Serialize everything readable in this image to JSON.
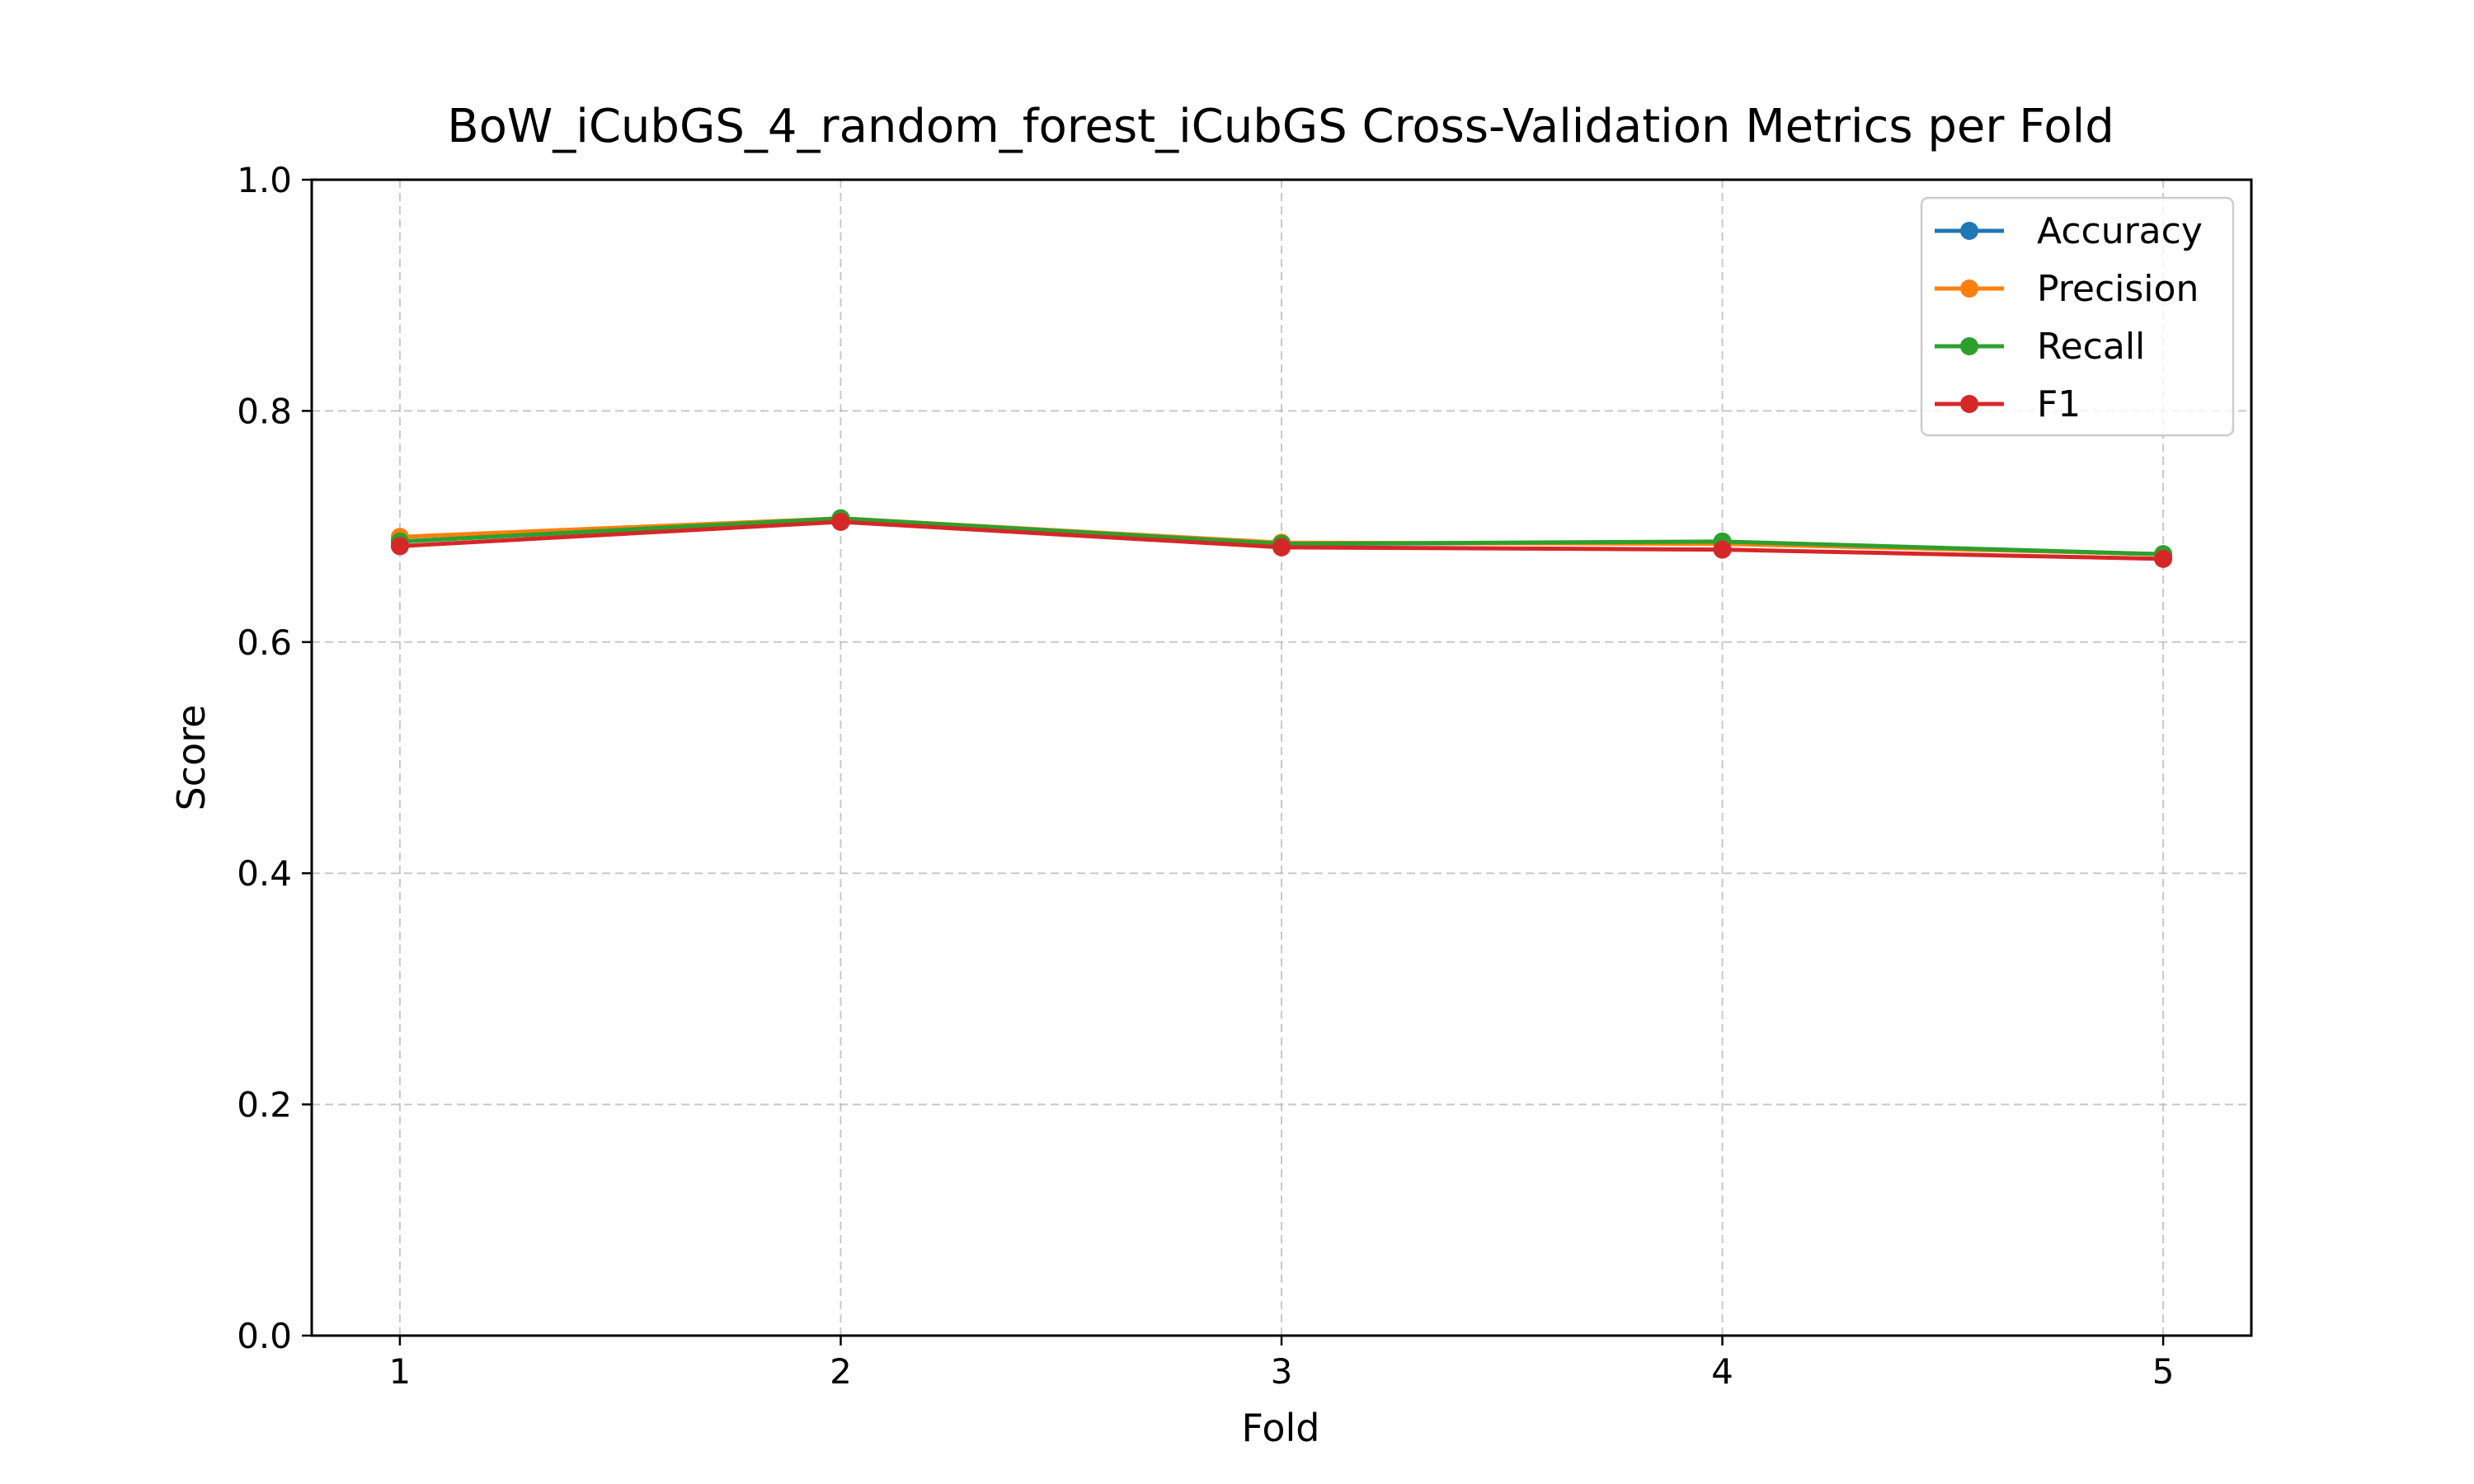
{
  "chart_data": {
    "type": "line",
    "title": "BoW_iCubGS_4_random_forest_iCubGS Cross-Validation Metrics per Fold",
    "xlabel": "Fold",
    "ylabel": "Score",
    "x": [
      1,
      2,
      3,
      4,
      5
    ],
    "xlim": [
      0.8,
      5.2
    ],
    "ylim": [
      0.0,
      1.0
    ],
    "xticks": [
      "1",
      "2",
      "3",
      "4",
      "5"
    ],
    "yticks": [
      "0.0",
      "0.2",
      "0.4",
      "0.6",
      "0.8",
      "1.0"
    ],
    "grid": true,
    "legend_position": "top-right",
    "series": [
      {
        "name": "Accuracy",
        "color": "#1f77b4",
        "values": [
          0.687,
          0.707,
          0.685,
          0.686,
          0.676
        ]
      },
      {
        "name": "Precision",
        "color": "#ff7f0e",
        "values": [
          0.691,
          0.707,
          0.686,
          0.685,
          0.676
        ]
      },
      {
        "name": "Recall",
        "color": "#2ca02c",
        "values": [
          0.687,
          0.707,
          0.685,
          0.687,
          0.676
        ]
      },
      {
        "name": "F1",
        "color": "#d62728",
        "values": [
          0.683,
          0.704,
          0.682,
          0.68,
          0.672
        ]
      }
    ]
  }
}
